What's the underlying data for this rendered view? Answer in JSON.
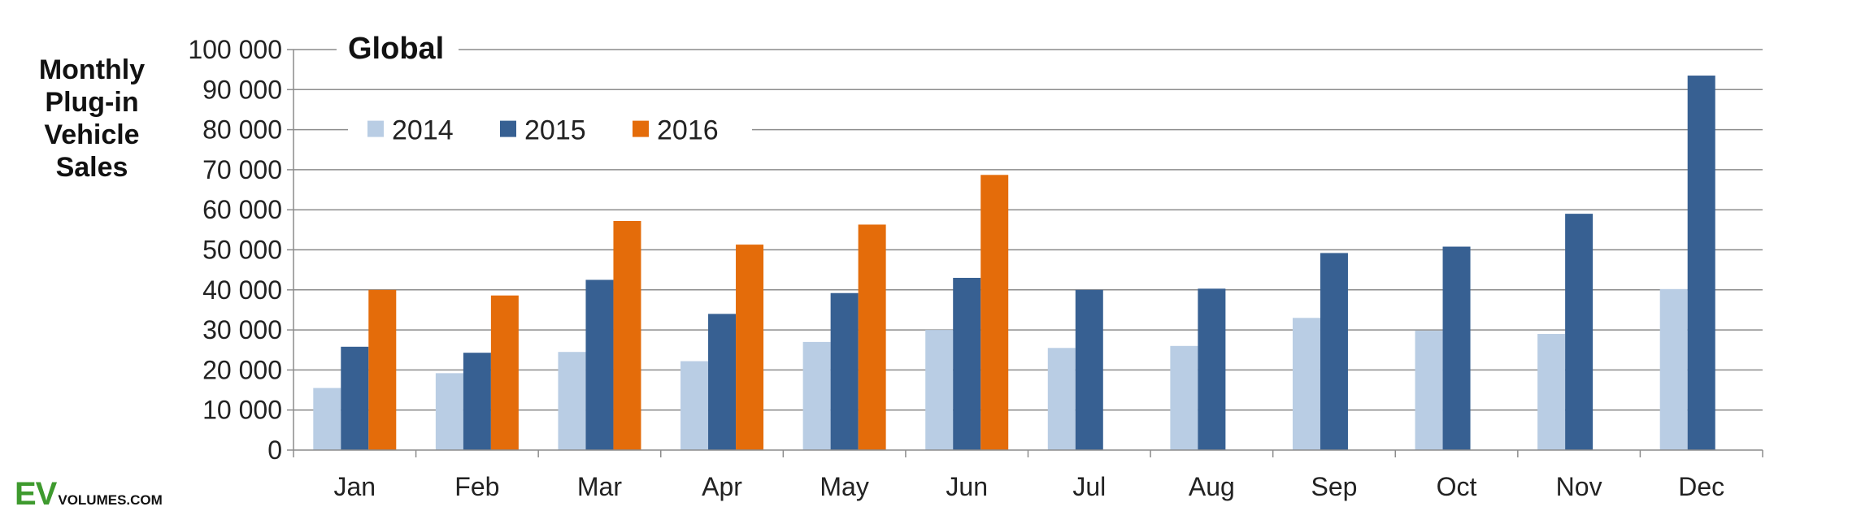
{
  "y_axis_title_lines": [
    "Monthly",
    "Plug-in",
    "Vehicle",
    "Sales"
  ],
  "logo": {
    "ev": "EV",
    "volumes": "VOLUMES.COM"
  },
  "colors": {
    "2014": "#b9cde4",
    "2015": "#376092",
    "2016": "#e46c0a",
    "grid": "#8c8c8c"
  },
  "chart_data": {
    "type": "bar",
    "title": "Global",
    "ylabel": "Monthly Plug-in Vehicle Sales",
    "xlabel": "",
    "categories": [
      "Jan",
      "Feb",
      "Mar",
      "Apr",
      "May",
      "Jun",
      "Jul",
      "Aug",
      "Sep",
      "Oct",
      "Nov",
      "Dec"
    ],
    "series": [
      {
        "name": "2014",
        "values": [
          15500,
          19200,
          24500,
          22200,
          27000,
          30000,
          25500,
          26000,
          33000,
          29800,
          29000,
          40200
        ]
      },
      {
        "name": "2015",
        "values": [
          25800,
          24300,
          42500,
          34000,
          39200,
          43000,
          40000,
          40300,
          49200,
          50800,
          59000,
          93500
        ]
      },
      {
        "name": "2016",
        "values": [
          40000,
          38600,
          57200,
          51300,
          56300,
          68700,
          null,
          null,
          null,
          null,
          null,
          null
        ]
      }
    ],
    "ylim": [
      0,
      100000
    ],
    "yticks": [
      0,
      10000,
      20000,
      30000,
      40000,
      50000,
      60000,
      70000,
      80000,
      90000,
      100000
    ],
    "ytick_labels": [
      "0",
      "10 000",
      "20 000",
      "30 000",
      "40 000",
      "50 000",
      "60 000",
      "70 000",
      "80 000",
      "90 000",
      "100 000"
    ],
    "grid": true,
    "legend_position": "top-left"
  }
}
